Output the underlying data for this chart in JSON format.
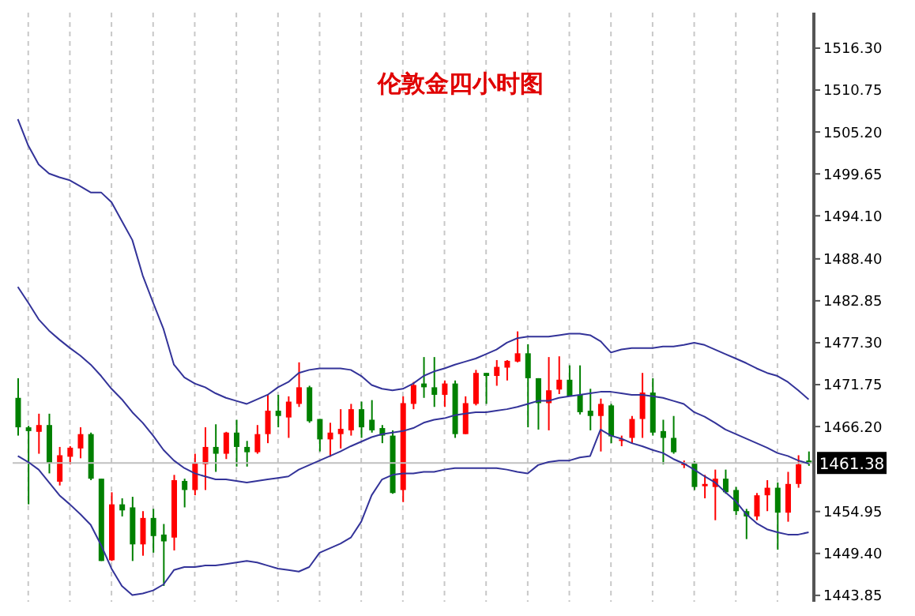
{
  "chart_data": {
    "type": "candlestick",
    "title": "伦敦金四小时图",
    "categories": [
      null,
      null,
      null,
      null,
      null,
      null,
      null,
      null,
      null,
      null,
      null,
      null,
      null,
      null,
      null,
      null,
      null,
      null,
      null,
      null,
      null,
      null,
      null,
      null,
      null,
      null,
      null,
      null,
      null,
      null,
      null,
      null,
      null,
      null,
      null,
      null,
      null,
      null,
      null,
      null,
      null,
      null,
      null,
      null,
      null,
      null,
      null,
      null,
      null,
      null,
      null,
      null,
      null,
      null,
      null,
      null,
      null,
      null,
      null,
      null,
      null,
      null,
      null,
      null,
      null,
      null,
      null,
      null,
      null,
      null,
      null,
      null,
      null,
      null,
      null,
      null,
      null
    ],
    "ohlc": [
      [
        1470.0,
        1472.6,
        1465.0,
        1466.1
      ],
      [
        1466.1,
        1466.3,
        1455.9,
        1465.6
      ],
      [
        1465.5,
        1467.9,
        1462.6,
        1466.4
      ],
      [
        1466.4,
        1467.9,
        1460.0,
        1461.4
      ],
      [
        1458.9,
        1463.5,
        1458.4,
        1462.4
      ],
      [
        1462.2,
        1463.6,
        1461.2,
        1463.4
      ],
      [
        1463.3,
        1466.1,
        1462.0,
        1465.2
      ],
      [
        1465.2,
        1465.4,
        1459.1,
        1459.3
      ],
      [
        1459.3,
        1459.3,
        1448.4,
        1448.4
      ],
      [
        1448.5,
        1457.5,
        1448.4,
        1455.9
      ],
      [
        1455.9,
        1456.7,
        1454.3,
        1455.1
      ],
      [
        1455.5,
        1456.9,
        1448.4,
        1450.6
      ],
      [
        1450.6,
        1455.0,
        1449.1,
        1454.1
      ],
      [
        1454.1,
        1455.3,
        1449.5,
        1451.7
      ],
      [
        1451.9,
        1453.3,
        1445.1,
        1451.0
      ],
      [
        1451.5,
        1459.8,
        1449.8,
        1459.1
      ],
      [
        1459.0,
        1459.3,
        1455.5,
        1457.8
      ],
      [
        1457.8,
        1462.6,
        1457.1,
        1461.4
      ],
      [
        1461.2,
        1466.1,
        1457.8,
        1463.5
      ],
      [
        1463.5,
        1466.5,
        1460.2,
        1462.6
      ],
      [
        1462.6,
        1465.5,
        1461.9,
        1465.4
      ],
      [
        1465.4,
        1467.1,
        1460.9,
        1463.5
      ],
      [
        1463.5,
        1464.3,
        1460.9,
        1462.8
      ],
      [
        1462.8,
        1466.4,
        1462.6,
        1465.2
      ],
      [
        1465.2,
        1470.5,
        1464.0,
        1468.3
      ],
      [
        1468.3,
        1470.4,
        1466.1,
        1467.6
      ],
      [
        1467.4,
        1470.2,
        1464.7,
        1469.5
      ],
      [
        1469.2,
        1474.7,
        1468.8,
        1471.4
      ],
      [
        1471.4,
        1471.6,
        1466.7,
        1466.9
      ],
      [
        1467.2,
        1467.2,
        1462.9,
        1464.5
      ],
      [
        1464.5,
        1466.7,
        1462.2,
        1465.4
      ],
      [
        1465.2,
        1468.5,
        1463.3,
        1465.9
      ],
      [
        1465.7,
        1469.2,
        1465.0,
        1468.5
      ],
      [
        1468.5,
        1469.5,
        1464.7,
        1466.1
      ],
      [
        1467.1,
        1469.7,
        1465.4,
        1465.7
      ],
      [
        1466.0,
        1466.4,
        1464.0,
        1465.0
      ],
      [
        1465.0,
        1465.7,
        1457.3,
        1457.4
      ],
      [
        1457.8,
        1470.2,
        1456.2,
        1469.3
      ],
      [
        1469.2,
        1472.1,
        1468.5,
        1471.7
      ],
      [
        1471.9,
        1475.4,
        1470.0,
        1471.4
      ],
      [
        1471.4,
        1475.4,
        1468.8,
        1470.4
      ],
      [
        1470.4,
        1472.3,
        1468.8,
        1471.9
      ],
      [
        1471.9,
        1472.3,
        1464.7,
        1465.2
      ],
      [
        1465.2,
        1470.2,
        1465.2,
        1469.3
      ],
      [
        1469.2,
        1473.7,
        1469.0,
        1473.3
      ],
      [
        1473.3,
        1473.3,
        1469.2,
        1472.9
      ],
      [
        1472.9,
        1475.0,
        1471.6,
        1474.1
      ],
      [
        1474.0,
        1475.0,
        1472.3,
        1474.9
      ],
      [
        1474.8,
        1478.8,
        1474.7,
        1475.9
      ],
      [
        1475.9,
        1477.1,
        1466.1,
        1472.6
      ],
      [
        1472.6,
        1472.6,
        1465.8,
        1469.3
      ],
      [
        1469.3,
        1475.4,
        1465.7,
        1471.0
      ],
      [
        1471.1,
        1475.5,
        1470.5,
        1472.4
      ],
      [
        1472.4,
        1474.3,
        1470.2,
        1470.2
      ],
      [
        1470.4,
        1474.3,
        1467.8,
        1468.1
      ],
      [
        1468.3,
        1471.2,
        1465.7,
        1467.6
      ],
      [
        1467.6,
        1469.9,
        1462.9,
        1469.2
      ],
      [
        1469.0,
        1469.2,
        1464.0,
        1464.9
      ],
      [
        1464.3,
        1465.0,
        1463.6,
        1464.5
      ],
      [
        1464.7,
        1467.6,
        1464.0,
        1467.2
      ],
      [
        1467.2,
        1473.3,
        1464.7,
        1470.7
      ],
      [
        1470.7,
        1472.6,
        1465.0,
        1465.4
      ],
      [
        1465.6,
        1467.1,
        1461.2,
        1464.7
      ],
      [
        1464.7,
        1467.6,
        1462.6,
        1462.8
      ],
      [
        1461.1,
        1461.7,
        1460.7,
        1461.4
      ],
      [
        1461.4,
        1461.6,
        1457.8,
        1458.2
      ],
      [
        1458.3,
        1459.8,
        1456.7,
        1458.6
      ],
      [
        1458.2,
        1460.5,
        1453.8,
        1459.3
      ],
      [
        1459.3,
        1460.5,
        1457.3,
        1457.5
      ],
      [
        1457.8,
        1458.2,
        1454.5,
        1455.0
      ],
      [
        1455.0,
        1455.3,
        1451.3,
        1454.3
      ],
      [
        1454.3,
        1457.4,
        1453.8,
        1457.1
      ],
      [
        1457.1,
        1459.1,
        1455.0,
        1458.1
      ],
      [
        1458.1,
        1458.8,
        1449.9,
        1454.8
      ],
      [
        1454.8,
        1460.2,
        1453.6,
        1458.6
      ],
      [
        1458.6,
        1462.4,
        1458.1,
        1461.2
      ],
      [
        1461.7,
        1462.9,
        1461.0,
        1461.4
      ]
    ],
    "colors": [
      "#008000",
      "#008000",
      "#ff0000",
      "#008000",
      "#ff0000",
      "#ff0000",
      "#ff0000",
      "#008000",
      "#008000",
      "#ff0000",
      "#008000",
      "#008000",
      "#ff0000",
      "#008000",
      "#008000",
      "#ff0000",
      "#008000",
      "#ff0000",
      "#ff0000",
      "#008000",
      "#ff0000",
      "#008000",
      "#008000",
      "#ff0000",
      "#ff0000",
      "#008000",
      "#ff0000",
      "#ff0000",
      "#008000",
      "#008000",
      "#ff0000",
      "#ff0000",
      "#ff0000",
      "#008000",
      "#008000",
      "#008000",
      "#008000",
      "#ff0000",
      "#ff0000",
      "#008000",
      "#008000",
      "#ff0000",
      "#008000",
      "#ff0000",
      "#ff0000",
      "#008000",
      "#ff0000",
      "#ff0000",
      "#ff0000",
      "#008000",
      "#008000",
      "#ff0000",
      "#ff0000",
      "#008000",
      "#008000",
      "#008000",
      "#ff0000",
      "#008000",
      "#ff0000",
      "#ff0000",
      "#ff0000",
      "#008000",
      "#008000",
      "#008000",
      "#ff0000",
      "#008000",
      "#ff0000",
      "#ff0000",
      "#008000",
      "#008000",
      "#008000",
      "#ff0000",
      "#ff0000",
      "#008000",
      "#ff0000",
      "#ff0000",
      "#008000"
    ],
    "series": [
      {
        "type": "line",
        "color": "#333399",
        "values": [
          1506.9,
          1503.4,
          1500.9,
          1499.7,
          1499.2,
          1498.8,
          1498.0,
          1497.2,
          1497.2,
          1495.9,
          1493.4,
          1490.9,
          1486.2,
          1482.6,
          1479.1,
          1474.4,
          1472.7,
          1471.9,
          1471.4,
          1470.6,
          1470.0,
          1469.6,
          1469.2,
          1469.8,
          1470.4,
          1471.4,
          1472.1,
          1473.3,
          1473.7,
          1473.9,
          1473.9,
          1473.9,
          1473.7,
          1472.9,
          1471.7,
          1471.2,
          1471.0,
          1471.2,
          1471.9,
          1472.9,
          1473.5,
          1473.9,
          1474.4,
          1474.8,
          1475.2,
          1475.8,
          1476.4,
          1477.3,
          1477.9,
          1478.1,
          1478.1,
          1478.1,
          1478.3,
          1478.5,
          1478.5,
          1478.3,
          1477.5,
          1476.0,
          1476.4,
          1476.6,
          1476.6,
          1476.6,
          1476.8,
          1476.8,
          1477.0,
          1477.3,
          1477.0,
          1476.4,
          1475.8,
          1475.2,
          1474.6,
          1473.9,
          1473.3,
          1472.9,
          1472.1,
          1471.0,
          1469.8
        ]
      },
      {
        "type": "line",
        "color": "#333399",
        "values": [
          1484.7,
          1482.6,
          1480.4,
          1478.9,
          1477.7,
          1476.6,
          1475.6,
          1474.4,
          1472.9,
          1471.2,
          1469.8,
          1468.1,
          1466.7,
          1465.0,
          1463.1,
          1461.7,
          1460.7,
          1460.0,
          1459.6,
          1459.2,
          1459.2,
          1459.0,
          1458.8,
          1459.0,
          1459.2,
          1459.4,
          1459.6,
          1460.5,
          1461.1,
          1461.7,
          1462.3,
          1462.9,
          1463.6,
          1464.2,
          1464.8,
          1465.2,
          1465.4,
          1465.6,
          1466.0,
          1466.7,
          1467.1,
          1467.3,
          1467.7,
          1467.9,
          1468.1,
          1468.1,
          1468.3,
          1468.5,
          1468.8,
          1469.2,
          1469.6,
          1469.6,
          1470.0,
          1470.2,
          1470.4,
          1470.6,
          1470.8,
          1470.8,
          1470.6,
          1470.4,
          1470.4,
          1470.2,
          1470.0,
          1469.6,
          1469.2,
          1468.1,
          1467.5,
          1466.7,
          1465.8,
          1465.2,
          1464.6,
          1464.0,
          1463.4,
          1462.7,
          1462.3,
          1461.7,
          1461.3
        ]
      },
      {
        "type": "line",
        "color": "#333399",
        "values": [
          1462.3,
          1461.5,
          1460.5,
          1458.8,
          1457.1,
          1455.9,
          1454.6,
          1453.2,
          1450.5,
          1447.4,
          1445.1,
          1443.9,
          1444.1,
          1444.5,
          1445.3,
          1447.2,
          1447.6,
          1447.6,
          1447.8,
          1447.8,
          1448.0,
          1448.2,
          1448.4,
          1448.2,
          1447.8,
          1447.4,
          1447.2,
          1447.0,
          1447.6,
          1449.5,
          1450.1,
          1450.7,
          1451.5,
          1453.6,
          1457.1,
          1459.2,
          1459.8,
          1460.0,
          1460.0,
          1460.2,
          1460.2,
          1460.5,
          1460.7,
          1460.7,
          1460.7,
          1460.7,
          1460.7,
          1460.5,
          1460.2,
          1460.0,
          1461.1,
          1461.5,
          1461.7,
          1461.7,
          1462.1,
          1462.3,
          1465.8,
          1465.0,
          1464.6,
          1464.0,
          1463.6,
          1463.1,
          1462.7,
          1461.9,
          1461.3,
          1460.5,
          1459.6,
          1458.8,
          1457.5,
          1456.3,
          1454.6,
          1453.4,
          1452.6,
          1452.2,
          1451.9,
          1451.9,
          1452.2
        ]
      }
    ],
    "ylim": [
      1443,
      1521
    ],
    "yticks": [
      {
        "value": 1516.3,
        "label": "1516.30"
      },
      1510.75,
      {
        "value": 1505.2,
        "label": "1505.20"
      },
      1499.65,
      {
        "value": 1494.1,
        "label": "1494.10"
      },
      {
        "value": 1488.4,
        "label": "1488.40"
      },
      1482.85,
      {
        "value": 1477.3,
        "label": "1477.30"
      },
      1471.75,
      {
        "value": 1466.2,
        "label": "1466.20"
      },
      1454.95,
      {
        "value": 1449.4,
        "label": "1449.40"
      },
      1443.85
    ],
    "ref_lines": [
      {
        "axis": "y",
        "value": 1461.38,
        "label": "1461.38",
        "color": "#c0c0c0"
      }
    ],
    "tick_labels": "y",
    "grid": true
  }
}
